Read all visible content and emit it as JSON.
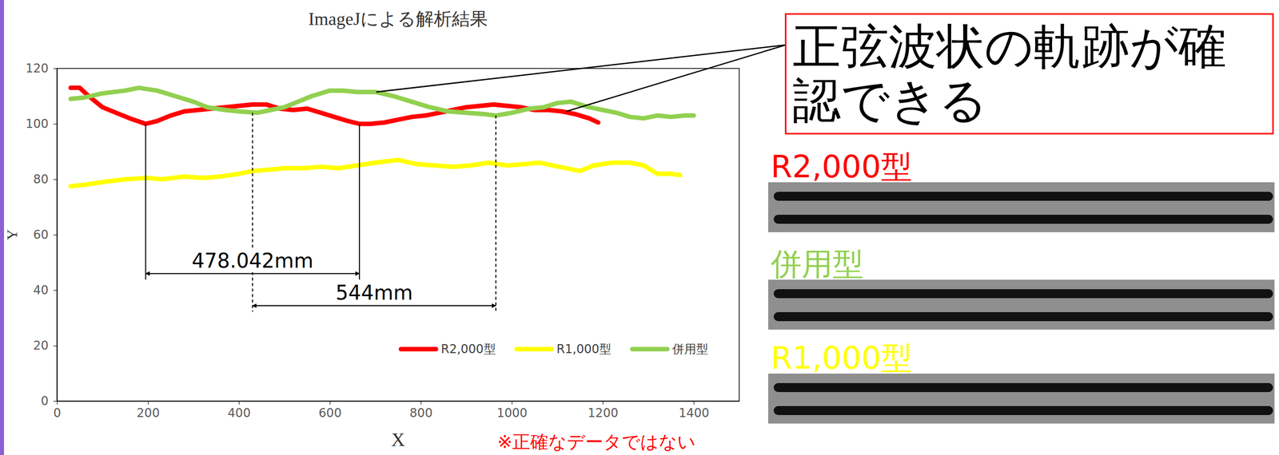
{
  "chart_data": {
    "type": "line",
    "title": "ImageJによる解析結果",
    "x_label": "X",
    "y_label": "Y",
    "xlim": [
      0,
      1500
    ],
    "xticks": [
      0,
      200,
      400,
      600,
      800,
      1000,
      1200,
      1400
    ],
    "ylim": [
      0,
      120
    ],
    "yticks": [
      0,
      20,
      40,
      60,
      80,
      100,
      120
    ],
    "grid": false,
    "legend": "lower right",
    "series": [
      {
        "name": "R2,000型",
        "color": "#ff0000",
        "x": [
          30,
          50,
          70,
          100,
          130,
          160,
          195,
          220,
          250,
          280,
          310,
          340,
          370,
          400,
          430,
          460,
          490,
          520,
          550,
          580,
          610,
          640,
          665,
          690,
          720,
          750,
          780,
          810,
          840,
          870,
          900,
          930,
          960,
          990,
          1020,
          1050,
          1080,
          1110,
          1140,
          1170,
          1190
        ],
        "values": [
          113,
          113,
          110,
          106,
          104,
          102,
          100,
          101,
          103,
          104.5,
          105,
          105.5,
          106,
          106.5,
          107,
          107,
          105.5,
          105,
          105.5,
          104,
          102.5,
          101,
          100,
          100,
          100.5,
          101.5,
          102.5,
          103,
          104,
          105,
          106,
          106.5,
          107,
          106.5,
          106,
          105,
          105,
          104.5,
          103.5,
          102,
          100.5
        ]
      },
      {
        "name": "R1,000型",
        "color": "#ffff00",
        "x": [
          30,
          60,
          100,
          150,
          200,
          230,
          280,
          320,
          360,
          400,
          430,
          470,
          500,
          540,
          580,
          620,
          660,
          700,
          750,
          790,
          830,
          870,
          910,
          950,
          990,
          1030,
          1060,
          1090,
          1120,
          1150,
          1180,
          1220,
          1260,
          1290,
          1320,
          1350,
          1370
        ],
        "values": [
          77.5,
          78,
          79,
          80,
          80.5,
          80,
          81,
          80.5,
          81,
          82,
          83,
          83.5,
          84,
          84,
          84.5,
          84,
          85,
          86,
          87,
          85.5,
          85,
          84.5,
          85,
          86,
          85,
          85.5,
          86,
          85,
          84,
          83,
          85,
          86,
          86,
          85,
          82,
          82,
          81.5
        ]
      },
      {
        "name": "併用型",
        "color": "#92d050",
        "x": [
          30,
          60,
          100,
          150,
          180,
          220,
          260,
          300,
          330,
          370,
          400,
          440,
          470,
          500,
          530,
          560,
          600,
          630,
          660,
          700,
          740,
          780,
          820,
          860,
          900,
          940,
          965,
          1000,
          1040,
          1070,
          1100,
          1130,
          1170,
          1200,
          1230,
          1260,
          1290,
          1320,
          1350,
          1380,
          1400
        ],
        "values": [
          109,
          109.5,
          111,
          112,
          113,
          112,
          110,
          108,
          106,
          105,
          104.5,
          104,
          105,
          106,
          108,
          110,
          112,
          112,
          111.5,
          111.5,
          110,
          108,
          106,
          104.5,
          104,
          103.5,
          103,
          104,
          105.5,
          106,
          107.5,
          108,
          106,
          105,
          104,
          102.5,
          102,
          103,
          102.5,
          103,
          103
        ]
      }
    ],
    "annotations": [
      {
        "text": "478.042mm",
        "x": [
          195,
          665
        ],
        "y": 46,
        "series": "R2,000型",
        "line_style": "solid"
      },
      {
        "text": "544mm",
        "x": [
          430,
          965
        ],
        "y": 34.4,
        "series": "併用型",
        "line_style": "dashed"
      }
    ],
    "callout": {
      "text": "正弦波状の軌跡が確認できる",
      "points": [
        [
          702,
          111.5
        ],
        [
          1120,
          104.5
        ]
      ]
    },
    "note": "※正確なデータではない"
  },
  "photos": [
    {
      "label": "R2,000型",
      "color": "#ff0000"
    },
    {
      "label": "併用型",
      "color": "#92d050"
    },
    {
      "label": "R1,000型",
      "color": "#ffff00"
    }
  ]
}
